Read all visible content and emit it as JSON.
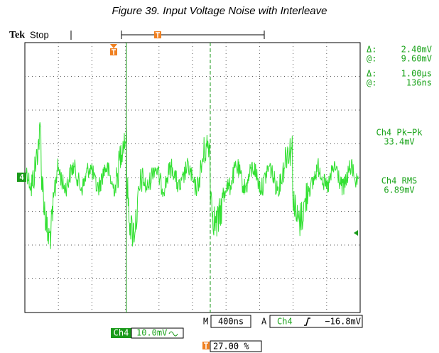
{
  "header": {
    "title": "Figure 39. Input Voltage Noise with Interleave",
    "brand": "Tek",
    "status": "Stop"
  },
  "cursors": [
    {
      "symbol": "Δ:",
      "value": "2.40mV"
    },
    {
      "symbol": "@:",
      "value": "9.60mV"
    },
    {
      "symbol": "Δ:",
      "value": "1.00µs"
    },
    {
      "symbol": "@:",
      "value": "136ns"
    }
  ],
  "measurements": [
    {
      "label": "Ch4 Pk−Pk",
      "value": "33.4mV"
    },
    {
      "label": "Ch4 RMS",
      "value": "6.89mV"
    }
  ],
  "channel_marker": "4",
  "footer": {
    "timebase_label": "M",
    "timebase": "400ns",
    "trigger_label": "A",
    "trigger_channel": "Ch4",
    "trigger_level": "−16.8mV",
    "channel": "Ch4",
    "scale": "10.0mV",
    "position": "27.00 %"
  }
}
